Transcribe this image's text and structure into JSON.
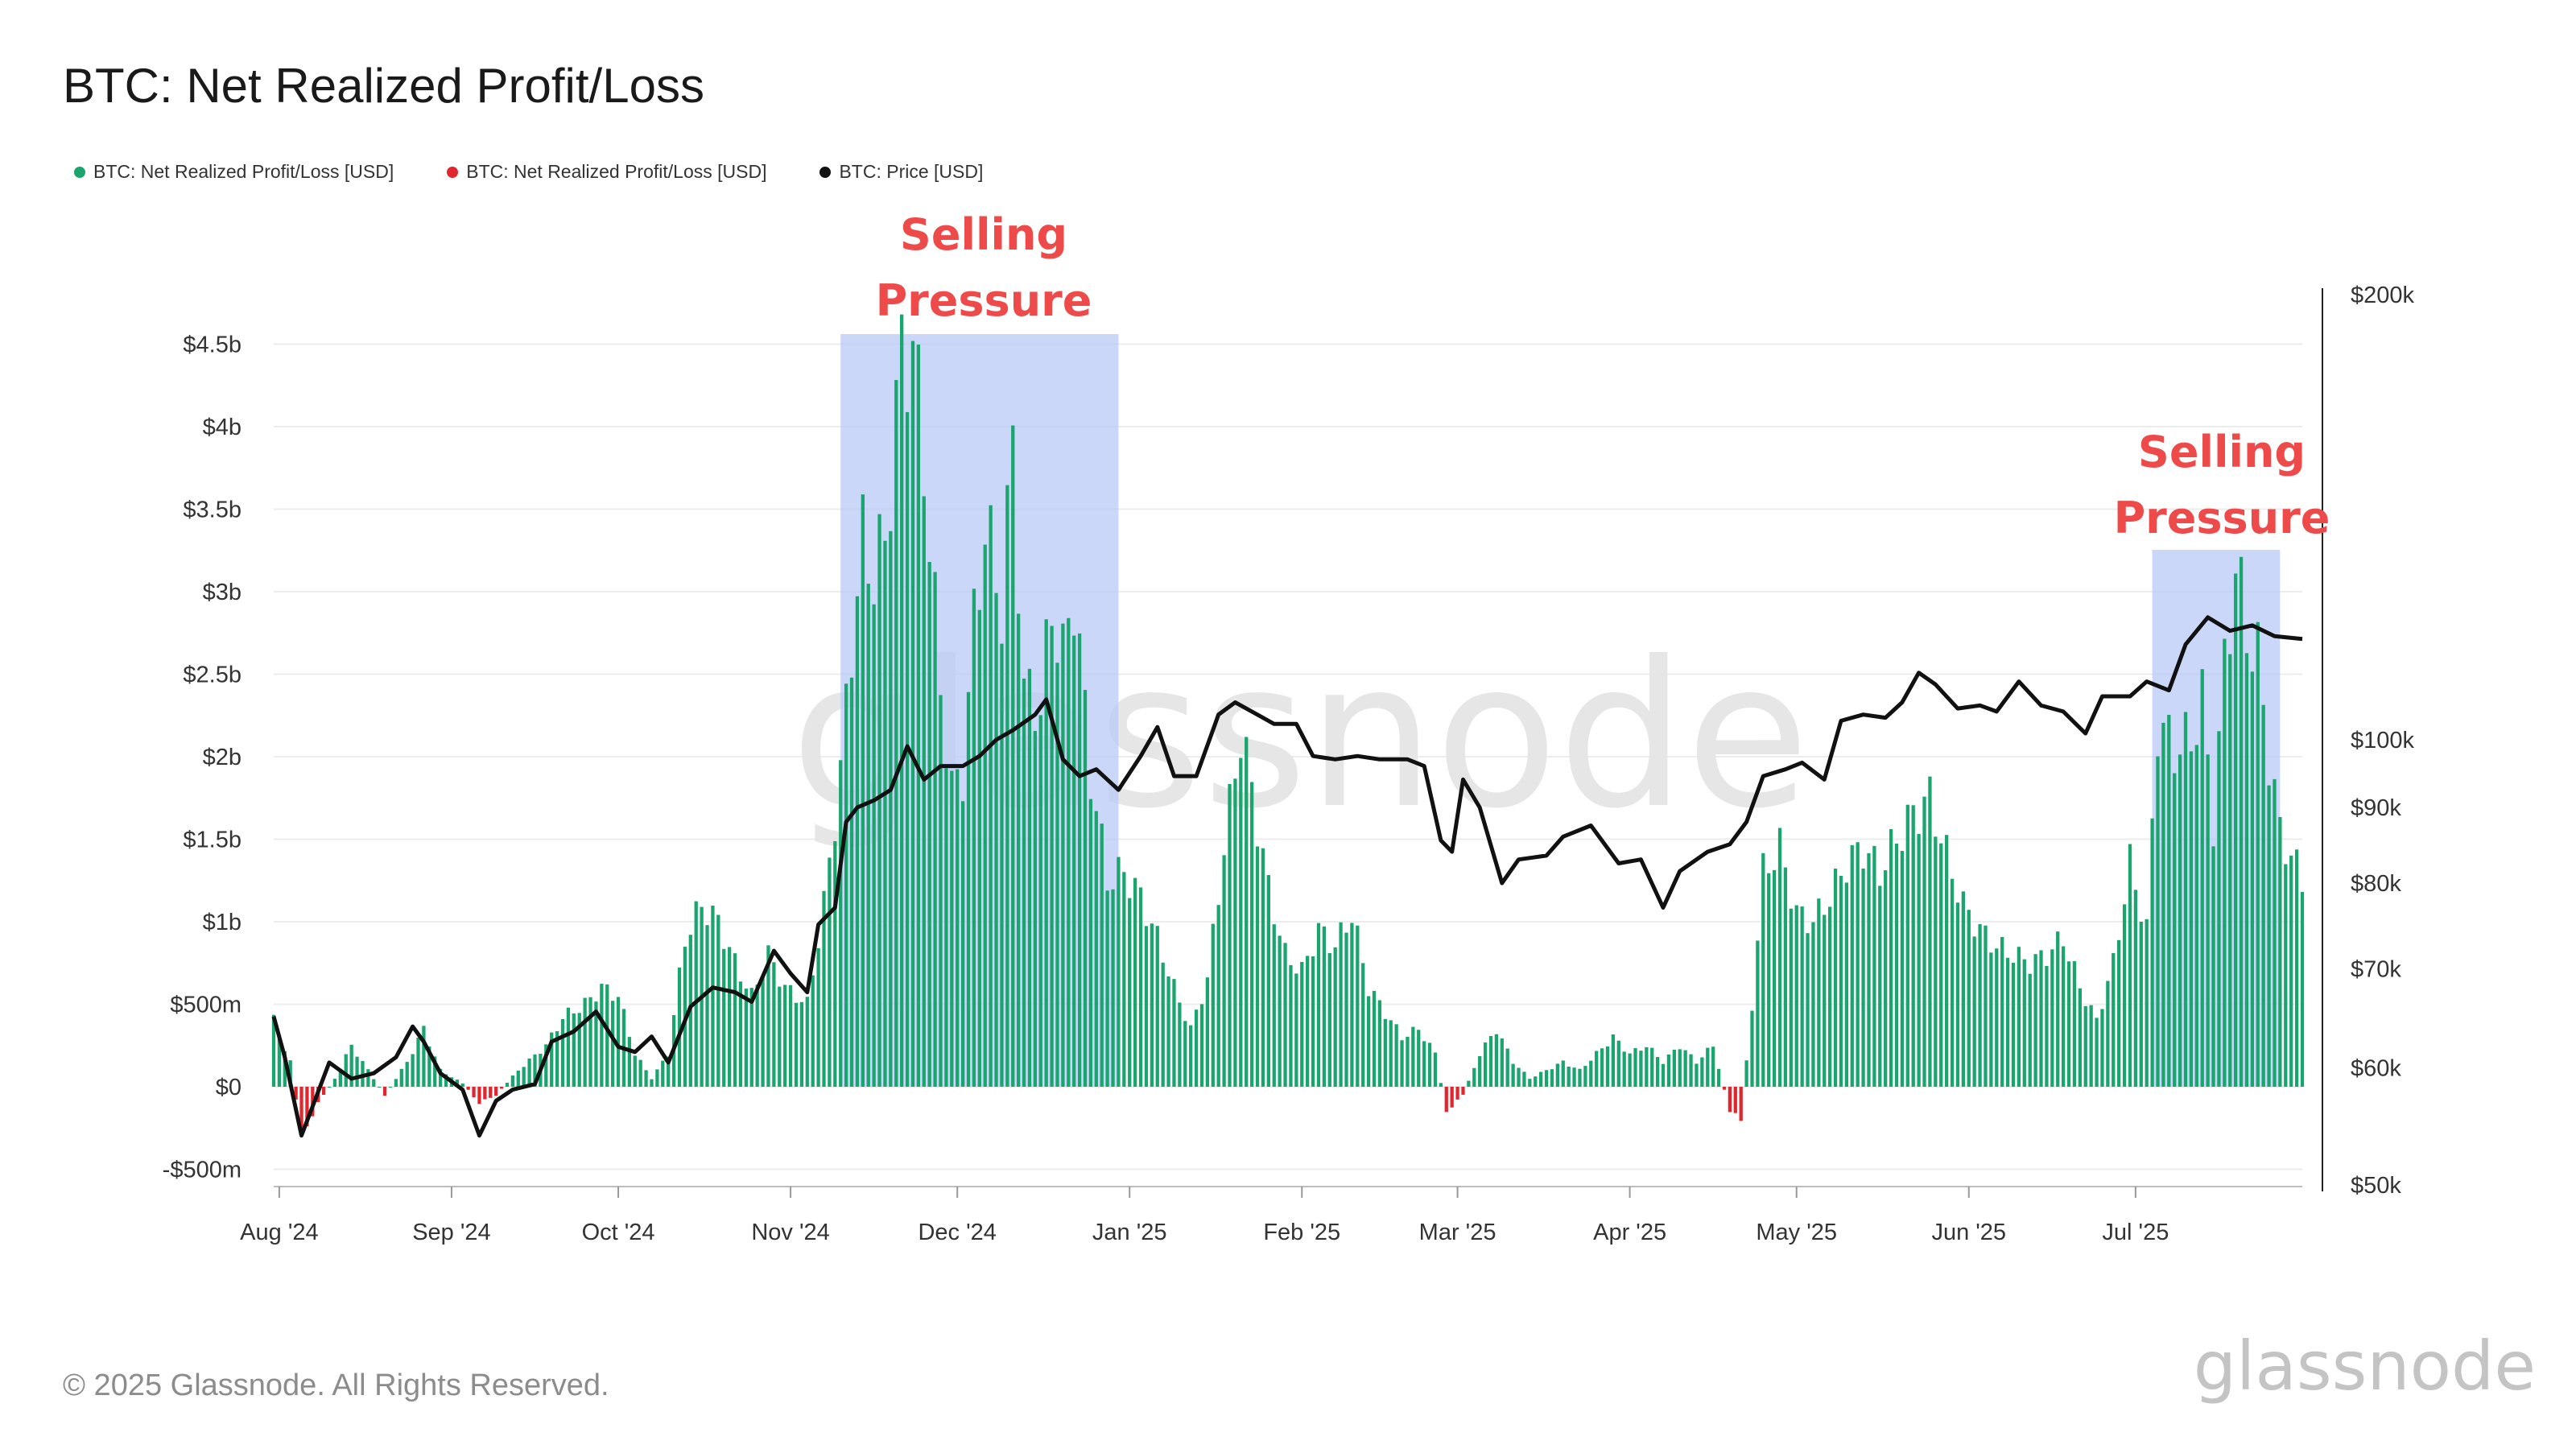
{
  "title": "BTC: Net Realized Profit/Loss",
  "legend": [
    {
      "label": "BTC: Net Realized Profit/Loss [USD]",
      "color": "#1aa56e"
    },
    {
      "label": "BTC: Net Realized Profit/Loss [USD]",
      "color": "#e2262e"
    },
    {
      "label": "BTC: Price [USD]",
      "color": "#111111"
    }
  ],
  "watermark": "glassnode",
  "footer": "© 2025 Glassnode. All Rights Reserved.",
  "brand_logo": "glassnode",
  "chart_data": {
    "type": "bar",
    "title": "BTC: Net Realized Profit/Loss",
    "x_range": [
      "2024-07-31",
      "2025-07-31"
    ],
    "x_tick_labels": [
      "Aug '24",
      "Sep '24",
      "Oct '24",
      "Nov '24",
      "Dec '24",
      "Jan '25",
      "Feb '25",
      "Mar '25",
      "Apr '25",
      "May '25",
      "Jun '25",
      "Jul '25"
    ],
    "y_left": {
      "tick_labels": [
        "-$500m",
        "$0",
        "$500m",
        "$1b",
        "$1.5b",
        "$2b",
        "$2.5b",
        "$3b",
        "$3.5b",
        "$4b",
        "$4.5b"
      ],
      "range": [
        -600000000,
        4700000000
      ],
      "unit": "USD"
    },
    "y_right": {
      "tick_labels": [
        "$50k",
        "$60k",
        "$70k",
        "$80k",
        "$90k",
        "$100k",
        "$200k"
      ],
      "scale": "log",
      "range": [
        50000,
        200000
      ],
      "unit": "USD"
    },
    "colors": {
      "profit": "#1aa56e",
      "loss": "#e2262e",
      "price": "#111111",
      "highlight": "#b9c9f6"
    },
    "series": [
      {
        "name": "BTC: Net Realized Profit/Loss [USD]",
        "unit": "USD billions",
        "points": [
          [
            "2024-07-31",
            0.4
          ],
          [
            "2024-08-03",
            0.15
          ],
          [
            "2024-08-05",
            -0.3
          ],
          [
            "2024-08-08",
            -0.1
          ],
          [
            "2024-08-11",
            0.05
          ],
          [
            "2024-08-14",
            0.25
          ],
          [
            "2024-08-17",
            0.1
          ],
          [
            "2024-08-20",
            -0.05
          ],
          [
            "2024-08-24",
            0.15
          ],
          [
            "2024-08-27",
            0.35
          ],
          [
            "2024-08-30",
            0.1
          ],
          [
            "2024-09-03",
            0.02
          ],
          [
            "2024-09-06",
            -0.1
          ],
          [
            "2024-09-09",
            -0.05
          ],
          [
            "2024-09-13",
            0.1
          ],
          [
            "2024-09-18",
            0.25
          ],
          [
            "2024-09-21",
            0.42
          ],
          [
            "2024-09-25",
            0.5
          ],
          [
            "2024-09-28",
            0.6
          ],
          [
            "2024-10-01",
            0.55
          ],
          [
            "2024-10-04",
            0.2
          ],
          [
            "2024-10-07",
            0.05
          ],
          [
            "2024-10-10",
            0.2
          ],
          [
            "2024-10-13",
            0.9
          ],
          [
            "2024-10-16",
            1.1
          ],
          [
            "2024-10-19",
            1.0
          ],
          [
            "2024-10-22",
            0.75
          ],
          [
            "2024-10-25",
            0.55
          ],
          [
            "2024-10-28",
            0.8
          ],
          [
            "2024-10-31",
            0.6
          ],
          [
            "2024-11-04",
            0.5
          ],
          [
            "2024-11-07",
            1.1
          ],
          [
            "2024-11-10",
            1.9
          ],
          [
            "2024-11-12",
            2.7
          ],
          [
            "2024-11-14",
            3.3
          ],
          [
            "2024-11-16",
            3.1
          ],
          [
            "2024-11-18",
            3.3
          ],
          [
            "2024-11-21",
            4.45
          ],
          [
            "2024-11-23",
            4.5
          ],
          [
            "2024-11-25",
            3.8
          ],
          [
            "2024-11-28",
            2.4
          ],
          [
            "2024-11-30",
            1.8
          ],
          [
            "2024-12-02",
            1.9
          ],
          [
            "2024-12-04",
            2.8
          ],
          [
            "2024-12-06",
            3.4
          ],
          [
            "2024-12-09",
            2.9
          ],
          [
            "2024-12-11",
            3.9
          ],
          [
            "2024-12-13",
            2.4
          ],
          [
            "2024-12-16",
            2.3
          ],
          [
            "2024-12-18",
            2.9
          ],
          [
            "2024-12-20",
            2.6
          ],
          [
            "2024-12-22",
            3.0
          ],
          [
            "2024-12-25",
            1.9
          ],
          [
            "2024-12-28",
            1.25
          ],
          [
            "2024-12-31",
            1.3
          ],
          [
            "2025-01-03",
            1.15
          ],
          [
            "2025-01-06",
            0.9
          ],
          [
            "2025-01-09",
            0.6
          ],
          [
            "2025-01-12",
            0.35
          ],
          [
            "2025-01-15",
            0.65
          ],
          [
            "2025-01-18",
            1.45
          ],
          [
            "2025-01-21",
            2.15
          ],
          [
            "2025-01-23",
            1.8
          ],
          [
            "2025-01-26",
            1.2
          ],
          [
            "2025-01-29",
            0.8
          ],
          [
            "2025-02-01",
            0.7
          ],
          [
            "2025-02-04",
            0.95
          ],
          [
            "2025-02-07",
            0.85
          ],
          [
            "2025-02-10",
            1.05
          ],
          [
            "2025-02-13",
            0.6
          ],
          [
            "2025-02-16",
            0.45
          ],
          [
            "2025-02-19",
            0.3
          ],
          [
            "2025-02-22",
            0.35
          ],
          [
            "2025-02-25",
            0.2
          ],
          [
            "2025-02-27",
            -0.15
          ],
          [
            "2025-03-02",
            -0.05
          ],
          [
            "2025-03-05",
            0.2
          ],
          [
            "2025-03-08",
            0.35
          ],
          [
            "2025-03-11",
            0.15
          ],
          [
            "2025-03-14",
            0.05
          ],
          [
            "2025-03-17",
            0.1
          ],
          [
            "2025-03-20",
            0.15
          ],
          [
            "2025-03-23",
            0.1
          ],
          [
            "2025-03-26",
            0.2
          ],
          [
            "2025-03-29",
            0.3
          ],
          [
            "2025-04-01",
            0.2
          ],
          [
            "2025-04-04",
            0.25
          ],
          [
            "2025-04-07",
            0.15
          ],
          [
            "2025-04-10",
            0.25
          ],
          [
            "2025-04-13",
            0.15
          ],
          [
            "2025-04-16",
            0.25
          ],
          [
            "2025-04-19",
            -0.15
          ],
          [
            "2025-04-21",
            -0.2
          ],
          [
            "2025-04-23",
            0.5
          ],
          [
            "2025-04-25",
            1.3
          ],
          [
            "2025-04-28",
            1.45
          ],
          [
            "2025-05-01",
            1.05
          ],
          [
            "2025-05-04",
            1.0
          ],
          [
            "2025-05-07",
            1.15
          ],
          [
            "2025-05-10",
            1.35
          ],
          [
            "2025-05-13",
            1.45
          ],
          [
            "2025-05-16",
            1.3
          ],
          [
            "2025-05-19",
            1.5
          ],
          [
            "2025-05-22",
            1.65
          ],
          [
            "2025-05-25",
            1.75
          ],
          [
            "2025-05-28",
            1.4
          ],
          [
            "2025-05-31",
            1.1
          ],
          [
            "2025-06-03",
            0.95
          ],
          [
            "2025-06-06",
            0.85
          ],
          [
            "2025-06-09",
            0.8
          ],
          [
            "2025-06-12",
            0.75
          ],
          [
            "2025-06-15",
            0.8
          ],
          [
            "2025-06-18",
            0.9
          ],
          [
            "2025-06-21",
            0.6
          ],
          [
            "2025-06-24",
            0.4
          ],
          [
            "2025-06-27",
            0.75
          ],
          [
            "2025-06-30",
            1.35
          ],
          [
            "2025-07-03",
            0.95
          ],
          [
            "2025-07-05",
            2.2
          ],
          [
            "2025-07-08",
            2.05
          ],
          [
            "2025-07-11",
            2.1
          ],
          [
            "2025-07-13",
            2.35
          ],
          [
            "2025-07-15",
            1.6
          ],
          [
            "2025-07-17",
            2.55
          ],
          [
            "2025-07-19",
            3.15
          ],
          [
            "2025-07-21",
            2.75
          ],
          [
            "2025-07-23",
            2.6
          ],
          [
            "2025-07-25",
            2.0
          ],
          [
            "2025-07-27",
            1.55
          ],
          [
            "2025-07-31",
            1.25
          ]
        ]
      },
      {
        "name": "BTC: Price [USD]",
        "unit": "USD",
        "points": [
          [
            "2024-07-31",
            65000
          ],
          [
            "2024-08-02",
            61000
          ],
          [
            "2024-08-05",
            54000
          ],
          [
            "2024-08-07",
            56500
          ],
          [
            "2024-08-10",
            60500
          ],
          [
            "2024-08-14",
            59000
          ],
          [
            "2024-08-18",
            59500
          ],
          [
            "2024-08-22",
            61000
          ],
          [
            "2024-08-25",
            64000
          ],
          [
            "2024-08-27",
            62500
          ],
          [
            "2024-08-30",
            59500
          ],
          [
            "2024-09-03",
            58000
          ],
          [
            "2024-09-06",
            54000
          ],
          [
            "2024-09-09",
            57000
          ],
          [
            "2024-09-12",
            58000
          ],
          [
            "2024-09-16",
            58500
          ],
          [
            "2024-09-19",
            62500
          ],
          [
            "2024-09-23",
            63500
          ],
          [
            "2024-09-27",
            65500
          ],
          [
            "2024-10-01",
            62000
          ],
          [
            "2024-10-04",
            61500
          ],
          [
            "2024-10-07",
            63000
          ],
          [
            "2024-10-10",
            60500
          ],
          [
            "2024-10-14",
            66000
          ],
          [
            "2024-10-18",
            68000
          ],
          [
            "2024-10-22",
            67500
          ],
          [
            "2024-10-25",
            66500
          ],
          [
            "2024-10-29",
            72000
          ],
          [
            "2024-11-01",
            69500
          ],
          [
            "2024-11-04",
            67500
          ],
          [
            "2024-11-06",
            75000
          ],
          [
            "2024-11-09",
            77000
          ],
          [
            "2024-11-11",
            88000
          ],
          [
            "2024-11-13",
            90000
          ],
          [
            "2024-11-16",
            91000
          ],
          [
            "2024-11-19",
            92500
          ],
          [
            "2024-11-22",
            99000
          ],
          [
            "2024-11-25",
            94000
          ],
          [
            "2024-11-28",
            96000
          ],
          [
            "2024-12-02",
            96000
          ],
          [
            "2024-12-05",
            97500
          ],
          [
            "2024-12-08",
            100000
          ],
          [
            "2024-12-11",
            101500
          ],
          [
            "2024-12-15",
            104000
          ],
          [
            "2024-12-17",
            106500
          ],
          [
            "2024-12-20",
            97000
          ],
          [
            "2024-12-23",
            94500
          ],
          [
            "2024-12-26",
            95500
          ],
          [
            "2024-12-30",
            92500
          ],
          [
            "2025-01-03",
            97500
          ],
          [
            "2025-01-06",
            102000
          ],
          [
            "2025-01-09",
            94500
          ],
          [
            "2025-01-13",
            94500
          ],
          [
            "2025-01-17",
            104000
          ],
          [
            "2025-01-20",
            106000
          ],
          [
            "2025-01-23",
            104500
          ],
          [
            "2025-01-27",
            102500
          ],
          [
            "2025-01-31",
            102500
          ],
          [
            "2025-02-03",
            97500
          ],
          [
            "2025-02-07",
            97000
          ],
          [
            "2025-02-11",
            97500
          ],
          [
            "2025-02-15",
            97000
          ],
          [
            "2025-02-20",
            97000
          ],
          [
            "2025-02-23",
            96000
          ],
          [
            "2025-02-26",
            85500
          ],
          [
            "2025-02-28",
            84000
          ],
          [
            "2025-03-02",
            94000
          ],
          [
            "2025-03-05",
            90000
          ],
          [
            "2025-03-09",
            80000
          ],
          [
            "2025-03-12",
            83000
          ],
          [
            "2025-03-17",
            83500
          ],
          [
            "2025-03-20",
            86000
          ],
          [
            "2025-03-25",
            87500
          ],
          [
            "2025-03-30",
            82500
          ],
          [
            "2025-04-03",
            83000
          ],
          [
            "2025-04-07",
            77000
          ],
          [
            "2025-04-10",
            81500
          ],
          [
            "2025-04-15",
            84000
          ],
          [
            "2025-04-19",
            85000
          ],
          [
            "2025-04-22",
            88000
          ],
          [
            "2025-04-25",
            94500
          ],
          [
            "2025-04-29",
            95500
          ],
          [
            "2025-05-02",
            96500
          ],
          [
            "2025-05-06",
            94000
          ],
          [
            "2025-05-09",
            103000
          ],
          [
            "2025-05-13",
            104000
          ],
          [
            "2025-05-17",
            103500
          ],
          [
            "2025-05-20",
            106000
          ],
          [
            "2025-05-23",
            111000
          ],
          [
            "2025-05-26",
            109000
          ],
          [
            "2025-05-30",
            105000
          ],
          [
            "2025-06-03",
            105500
          ],
          [
            "2025-06-06",
            104500
          ],
          [
            "2025-06-10",
            109500
          ],
          [
            "2025-06-14",
            105500
          ],
          [
            "2025-06-18",
            104500
          ],
          [
            "2025-06-22",
            101000
          ],
          [
            "2025-06-25",
            107000
          ],
          [
            "2025-06-30",
            107000
          ],
          [
            "2025-07-03",
            109500
          ],
          [
            "2025-07-07",
            108000
          ],
          [
            "2025-07-10",
            116000
          ],
          [
            "2025-07-14",
            121000
          ],
          [
            "2025-07-18",
            118500
          ],
          [
            "2025-07-22",
            119500
          ],
          [
            "2025-07-26",
            117500
          ],
          [
            "2025-07-31",
            117000
          ]
        ]
      }
    ],
    "annotations": [
      {
        "text_lines": [
          "Selling",
          "Pressure"
        ],
        "range": [
          "2024-11-10",
          "2024-12-30"
        ]
      },
      {
        "text_lines": [
          "Selling",
          "Pressure"
        ],
        "range": [
          "2025-07-04",
          "2025-07-27"
        ]
      }
    ]
  }
}
